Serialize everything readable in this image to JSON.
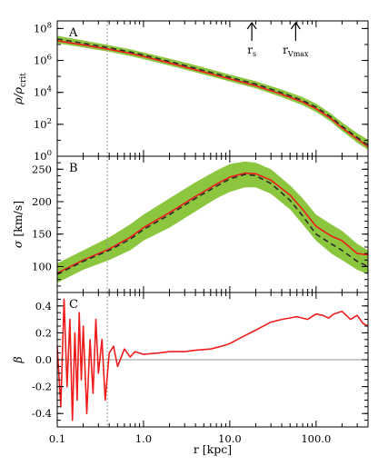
{
  "colors": {
    "band": "#8cc63f",
    "line": "#ee1c1c",
    "dashed": "#2d2d2d",
    "ref": "#9a9a9a"
  },
  "xaxis": {
    "label_main": "r",
    "label_unit": "[kpc]",
    "scale": "log",
    "range": [
      0.1,
      400
    ],
    "ticks": [
      {
        "value": 0.1,
        "label": "0.1"
      },
      {
        "value": 1,
        "label": "1.0"
      },
      {
        "value": 10,
        "label": "10.0"
      },
      {
        "value": 100,
        "label": "100.0"
      }
    ]
  },
  "ref_line_r": 0.38,
  "annotations": {
    "rs": {
      "x": 18,
      "base": "r",
      "sub": "s"
    },
    "rvmax": {
      "x": 58,
      "base": "r",
      "sub": "Vmax"
    }
  },
  "chart_data": [
    {
      "panel": "A",
      "type": "line",
      "ylabel_main": "ρ/ρ",
      "ylabel_sub": "crit",
      "yscale": "log",
      "ylim": [
        1,
        300000000
      ],
      "ticks": [
        {
          "value": 1,
          "base": "10",
          "exp": "0"
        },
        {
          "value": 100,
          "base": "10",
          "exp": "2"
        },
        {
          "value": 10000,
          "base": "10",
          "exp": "4"
        },
        {
          "value": 1000000,
          "base": "10",
          "exp": "6"
        },
        {
          "value": 100000000,
          "base": "10",
          "exp": "8"
        }
      ],
      "x": [
        0.1,
        0.2,
        0.4,
        0.7,
        1,
        2,
        4,
        7,
        10,
        20,
        40,
        70,
        100,
        150,
        200,
        300,
        400
      ],
      "band_upper": [
        35000000,
        18000000,
        9000000,
        5000000,
        3200000,
        1300000,
        500000,
        220000,
        130000,
        50000,
        15000,
        5000,
        2000,
        450,
        130,
        28,
        11
      ],
      "band_lower": [
        12000000,
        6500000,
        3500000,
        1900000,
        1200000,
        480000,
        180000,
        80000,
        48000,
        18000,
        5000,
        1600,
        600,
        140,
        38,
        7,
        2.5
      ],
      "series": [
        {
          "style": "solid",
          "values": [
            17000000,
            9500000,
            5000000,
            2800000,
            1800000,
            700000,
            260000,
            115000,
            70000,
            26000,
            7500,
            2500,
            950,
            220,
            60,
            12,
            4
          ]
        },
        {
          "style": "dashed",
          "values": [
            22000000,
            12000000,
            6200000,
            3400000,
            2200000,
            870000,
            320000,
            145000,
            88000,
            33000,
            9500,
            3100,
            1200,
            280,
            75,
            15,
            5
          ]
        }
      ]
    },
    {
      "panel": "B",
      "type": "line",
      "ylabel_main": "σ",
      "ylabel_unit": "[km/s]",
      "yscale": "linear",
      "ylim": [
        60,
        270
      ],
      "ticks": [
        {
          "value": 100,
          "label": "100"
        },
        {
          "value": 150,
          "label": "150"
        },
        {
          "value": 200,
          "label": "200"
        },
        {
          "value": 250,
          "label": "250"
        }
      ],
      "x": [
        0.1,
        0.2,
        0.4,
        0.7,
        1,
        2,
        4,
        7,
        10,
        15,
        20,
        30,
        50,
        70,
        100,
        150,
        200,
        300,
        400
      ],
      "band_upper": [
        105,
        125,
        145,
        165,
        180,
        205,
        230,
        248,
        258,
        262,
        260,
        250,
        225,
        205,
        180,
        165,
        155,
        135,
        125
      ],
      "band_lower": [
        75,
        95,
        110,
        125,
        140,
        160,
        185,
        205,
        215,
        222,
        222,
        212,
        188,
        165,
        140,
        120,
        110,
        95,
        88
      ],
      "series": [
        {
          "style": "solid",
          "values": [
            90,
            110,
            127,
            145,
            160,
            183,
            208,
            227,
            238,
            244,
            243,
            233,
            210,
            188,
            162,
            147,
            140,
            120,
            118
          ]
        },
        {
          "style": "dashed",
          "values": [
            88,
            108,
            125,
            142,
            157,
            180,
            205,
            224,
            235,
            242,
            240,
            228,
            202,
            178,
            150,
            135,
            125,
            108,
            100
          ]
        }
      ]
    },
    {
      "panel": "C",
      "type": "line",
      "ylabel_main": "β",
      "yscale": "linear",
      "ylim": [
        -0.5,
        0.5
      ],
      "ticks": [
        {
          "value": -0.4,
          "label": "-0.4"
        },
        {
          "value": -0.2,
          "label": "-0.2"
        },
        {
          "value": 0.0,
          "label": "0.0"
        },
        {
          "value": 0.2,
          "label": "0.2"
        },
        {
          "value": 0.4,
          "label": "0.4"
        }
      ],
      "zero_line": 0,
      "x": [
        0.1,
        0.11,
        0.12,
        0.13,
        0.14,
        0.15,
        0.16,
        0.17,
        0.18,
        0.19,
        0.2,
        0.22,
        0.24,
        0.26,
        0.28,
        0.3,
        0.33,
        0.36,
        0.4,
        0.45,
        0.5,
        0.6,
        0.7,
        0.8,
        1,
        1.5,
        2,
        3,
        4,
        6,
        8,
        10,
        14,
        20,
        30,
        40,
        60,
        80,
        100,
        120,
        140,
        160,
        200,
        250,
        300,
        350,
        400
      ],
      "values": [
        0.1,
        -0.35,
        0.45,
        -0.2,
        0.3,
        -0.45,
        0.2,
        -0.3,
        0.35,
        -0.15,
        0.25,
        -0.4,
        0.15,
        -0.25,
        0.3,
        -0.1,
        0.15,
        -0.3,
        0.05,
        0.1,
        -0.05,
        0.08,
        0.02,
        0.06,
        0.04,
        0.05,
        0.06,
        0.06,
        0.07,
        0.08,
        0.1,
        0.12,
        0.17,
        0.22,
        0.28,
        0.3,
        0.32,
        0.3,
        0.34,
        0.33,
        0.31,
        0.34,
        0.36,
        0.3,
        0.33,
        0.27,
        0.25
      ]
    }
  ]
}
